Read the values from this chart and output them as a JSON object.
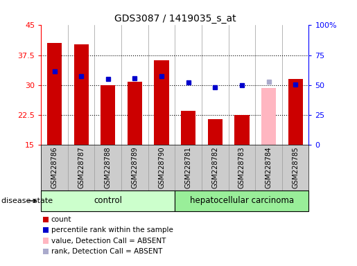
{
  "title": "GDS3087 / 1419035_s_at",
  "samples": [
    "GSM228786",
    "GSM228787",
    "GSM228788",
    "GSM228789",
    "GSM228790",
    "GSM228781",
    "GSM228782",
    "GSM228783",
    "GSM228784",
    "GSM228785"
  ],
  "bar_values": [
    40.5,
    40.3,
    30.0,
    30.8,
    36.2,
    23.5,
    21.5,
    22.5,
    29.3,
    31.5
  ],
  "bar_colors": [
    "#cc0000",
    "#cc0000",
    "#cc0000",
    "#cc0000",
    "#cc0000",
    "#cc0000",
    "#cc0000",
    "#cc0000",
    "#ffb6c1",
    "#cc0000"
  ],
  "dot_values_left": [
    33.5,
    32.2,
    31.5,
    31.8,
    32.2,
    30.7,
    29.5,
    30.0,
    30.8,
    30.2
  ],
  "dot_colors": [
    "#0000cc",
    "#0000cc",
    "#0000cc",
    "#0000cc",
    "#0000cc",
    "#0000cc",
    "#0000cc",
    "#0000cc",
    "#aaaacc",
    "#0000cc"
  ],
  "ylim_left": [
    15,
    45
  ],
  "ylim_right": [
    0,
    100
  ],
  "yticks_left": [
    15,
    22.5,
    30,
    37.5,
    45
  ],
  "ytick_labels_left": [
    "15",
    "22.5",
    "30",
    "37.5",
    "45"
  ],
  "yticks_right": [
    0,
    25,
    50,
    75,
    100
  ],
  "ytick_labels_right": [
    "0",
    "25",
    "50",
    "75",
    "100%"
  ],
  "grid_dotted_at": [
    22.5,
    30.0,
    37.5
  ],
  "control_color": "#ccffcc",
  "carcinoma_color": "#99ee99",
  "xtick_bg": "#cccccc",
  "bar_width": 0.55,
  "n_control": 5,
  "legend_items": [
    {
      "label": "count",
      "color": "#cc0000"
    },
    {
      "label": "percentile rank within the sample",
      "color": "#0000cc"
    },
    {
      "label": "value, Detection Call = ABSENT",
      "color": "#ffb6c1"
    },
    {
      "label": "rank, Detection Call = ABSENT",
      "color": "#aaaacc"
    }
  ]
}
